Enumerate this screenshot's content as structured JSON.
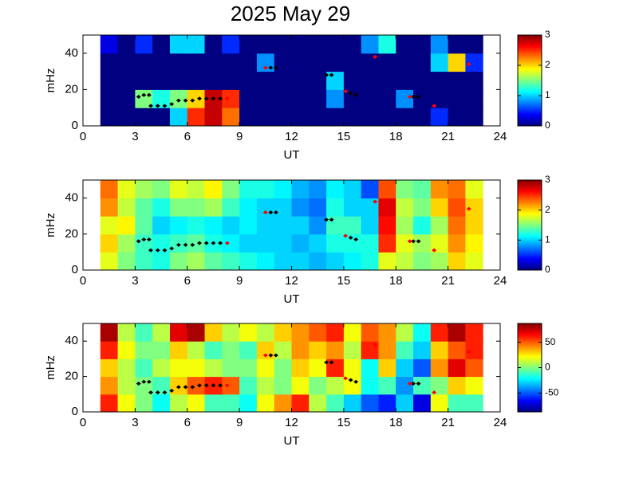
{
  "title": "2025 May 29",
  "chart_data": [
    {
      "type": "heatmap",
      "colormap": "jet",
      "xlabel": "UT",
      "ylabel": "mHz",
      "xlim": [
        0,
        24
      ],
      "ylim": [
        0,
        50
      ],
      "xticks": [
        0,
        3,
        6,
        9,
        12,
        15,
        18,
        21,
        24
      ],
      "yticks": [
        0,
        20,
        40
      ],
      "zlim": [
        0,
        3
      ],
      "zticks": [
        0,
        1,
        2,
        3
      ],
      "x": [
        1.5,
        2.5,
        3.5,
        4.5,
        5.5,
        6.5,
        7.5,
        8.5,
        9.5,
        10.5,
        11.5,
        12.5,
        13.5,
        14.5,
        15.5,
        16.5,
        17.5,
        18.5,
        19.5,
        20.5,
        21.5,
        22.5
      ],
      "y": [
        5,
        15,
        25,
        35,
        45
      ],
      "z": [
        [
          0,
          0,
          0,
          0,
          1,
          2.5,
          2.8,
          2.3,
          0,
          0,
          0,
          0,
          0,
          0,
          0,
          0,
          0,
          0,
          0,
          0.5,
          0,
          0
        ],
        [
          0,
          0,
          1.5,
          1.2,
          1.5,
          2,
          2.8,
          2.5,
          0,
          0,
          0,
          0,
          0,
          0.8,
          0,
          0,
          0,
          0.8,
          0,
          0,
          0,
          0
        ],
        [
          0,
          0,
          0,
          0,
          0,
          0,
          0,
          0,
          0,
          0,
          0,
          0,
          0,
          1,
          0,
          0,
          0,
          0,
          0,
          0,
          0,
          0
        ],
        [
          0,
          0,
          0,
          0,
          0,
          0,
          0,
          0,
          0,
          0.8,
          0,
          0,
          0,
          0,
          0,
          0,
          0,
          0,
          0,
          1,
          2,
          0.5
        ],
        [
          0.3,
          0,
          0.5,
          0,
          1,
          1,
          0,
          0.5,
          0,
          0,
          0,
          0,
          0,
          0,
          0,
          0.8,
          1.2,
          0,
          0,
          0.8,
          0,
          0
        ]
      ],
      "series": [
        {
          "color": "#000000",
          "x": [
            3.2,
            3.5,
            3.8,
            3.9,
            4.3,
            4.7,
            5.1,
            5.5,
            5.9,
            6.3,
            6.7,
            7.1,
            7.5,
            7.9,
            10.8,
            11.1,
            14.0,
            14.3,
            15.4,
            15.7,
            19.0,
            19.3
          ],
          "values": [
            16,
            17,
            17,
            11,
            11,
            11,
            12,
            14,
            14,
            14,
            15,
            15,
            15,
            15,
            32,
            32,
            28,
            28,
            18,
            17,
            16,
            16
          ]
        },
        {
          "color": "#ff0000",
          "x": [
            8.3,
            10.5,
            15.1,
            16.8,
            18.8,
            20.2,
            22.2
          ],
          "values": [
            15,
            32,
            19,
            38,
            16,
            11,
            34
          ]
        }
      ]
    },
    {
      "type": "heatmap",
      "colormap": "jet",
      "xlabel": "UT",
      "ylabel": "mHz",
      "xlim": [
        0,
        24
      ],
      "ylim": [
        0,
        50
      ],
      "xticks": [
        0,
        3,
        6,
        9,
        12,
        15,
        18,
        21,
        24
      ],
      "yticks": [
        0,
        20,
        40
      ],
      "zlim": [
        0,
        3
      ],
      "zticks": [
        0,
        1,
        2,
        3
      ],
      "x": [
        1.5,
        2.5,
        3.5,
        4.5,
        5.5,
        6.5,
        7.5,
        8.5,
        9.5,
        10.5,
        11.5,
        12.5,
        13.5,
        14.5,
        15.5,
        16.5,
        17.5,
        18.5,
        19.5,
        20.5,
        21.5,
        22.5
      ],
      "y": [
        5,
        15,
        25,
        35,
        45
      ],
      "z": [
        [
          1.8,
          1.5,
          1.3,
          1.2,
          1.5,
          1.6,
          1.4,
          1.3,
          1.2,
          1.1,
          1.0,
          1.0,
          0.9,
          1.0,
          1.1,
          1.2,
          1.8,
          1.7,
          1.5,
          1.6,
          2.0,
          1.8
        ],
        [
          2.0,
          1.6,
          1.3,
          1.2,
          1.3,
          1.4,
          1.2,
          1.1,
          1.0,
          1.0,
          1.0,
          0.9,
          1.0,
          1.2,
          1.2,
          1.2,
          2.5,
          1.8,
          1.6,
          1.8,
          2.2,
          1.9
        ],
        [
          1.8,
          1.9,
          1.4,
          1.0,
          1.1,
          1.2,
          1.1,
          1.0,
          1.1,
          1.0,
          1.0,
          1.0,
          0.8,
          1.3,
          1.3,
          1.0,
          2.6,
          1.6,
          1.2,
          1.6,
          2.3,
          2.0
        ],
        [
          2.2,
          1.7,
          1.4,
          1.2,
          1.5,
          1.5,
          1.6,
          1.3,
          1.1,
          1.0,
          1.0,
          0.8,
          0.7,
          1.2,
          1.0,
          1.0,
          2.7,
          1.7,
          1.5,
          2.0,
          2.4,
          2.0
        ],
        [
          2.3,
          1.8,
          1.6,
          1.5,
          1.8,
          1.7,
          1.9,
          1.5,
          1.2,
          1.2,
          1.1,
          0.9,
          0.8,
          1.1,
          1.0,
          0.6,
          2.4,
          1.5,
          1.4,
          2.2,
          2.3,
          1.8
        ]
      ],
      "series": [
        {
          "color": "#000000",
          "x": [
            3.2,
            3.5,
            3.8,
            3.9,
            4.3,
            4.7,
            5.1,
            5.5,
            5.9,
            6.3,
            6.7,
            7.1,
            7.5,
            7.9,
            10.8,
            11.1,
            14.0,
            14.3,
            15.4,
            15.7,
            19.0,
            19.3
          ],
          "values": [
            16,
            17,
            17,
            11,
            11,
            11,
            12,
            14,
            14,
            14,
            15,
            15,
            15,
            15,
            32,
            32,
            28,
            28,
            18,
            17,
            16,
            16
          ]
        },
        {
          "color": "#ff0000",
          "x": [
            8.3,
            10.5,
            15.1,
            16.8,
            18.8,
            20.2,
            22.2
          ],
          "values": [
            15,
            32,
            19,
            38,
            16,
            11,
            34
          ]
        }
      ]
    },
    {
      "type": "heatmap",
      "colormap": "jet",
      "xlabel": "UT",
      "ylabel": "mHz",
      "xlim": [
        0,
        24
      ],
      "ylim": [
        0,
        50
      ],
      "xticks": [
        0,
        3,
        6,
        9,
        12,
        15,
        18,
        21,
        24
      ],
      "yticks": [
        0,
        20,
        40
      ],
      "zlim": [
        -87,
        87
      ],
      "zticks": [
        -50,
        0,
        50
      ],
      "x": [
        1.5,
        2.5,
        3.5,
        4.5,
        5.5,
        6.5,
        7.5,
        8.5,
        9.5,
        10.5,
        11.5,
        12.5,
        13.5,
        14.5,
        15.5,
        16.5,
        17.5,
        18.5,
        19.5,
        20.5,
        21.5,
        22.5
      ],
      "y": [
        5,
        15,
        25,
        35,
        45
      ],
      "z": [
        [
          60,
          20,
          0,
          -20,
          10,
          20,
          -10,
          -10,
          -20,
          20,
          40,
          60,
          10,
          -10,
          -30,
          -50,
          -60,
          -30,
          -70,
          20,
          -10,
          -10
        ],
        [
          40,
          10,
          0,
          -10,
          30,
          50,
          60,
          50,
          -10,
          10,
          0,
          20,
          0,
          10,
          20,
          -20,
          -10,
          -40,
          -10,
          0,
          30,
          20
        ],
        [
          30,
          10,
          -10,
          10,
          20,
          20,
          10,
          0,
          0,
          20,
          0,
          30,
          20,
          60,
          20,
          -20,
          30,
          -30,
          -50,
          40,
          70,
          50
        ],
        [
          60,
          20,
          0,
          0,
          30,
          10,
          -10,
          0,
          -10,
          30,
          10,
          40,
          30,
          40,
          10,
          60,
          40,
          -10,
          -30,
          30,
          50,
          60
        ],
        [
          80,
          10,
          -10,
          10,
          70,
          80,
          30,
          10,
          20,
          10,
          30,
          40,
          50,
          60,
          20,
          50,
          40,
          10,
          -20,
          60,
          80,
          60
        ]
      ],
      "series": [
        {
          "color": "#000000",
          "x": [
            3.2,
            3.5,
            3.8,
            3.9,
            4.3,
            4.7,
            5.1,
            5.5,
            5.9,
            6.3,
            6.7,
            7.1,
            7.5,
            7.9,
            10.8,
            11.1,
            14.0,
            14.3,
            15.4,
            15.7,
            19.0,
            19.3
          ],
          "values": [
            16,
            17,
            17,
            11,
            11,
            11,
            12,
            14,
            14,
            14,
            15,
            15,
            15,
            15,
            32,
            32,
            28,
            28,
            18,
            17,
            16,
            16
          ]
        },
        {
          "color": "#ff0000",
          "x": [
            8.3,
            10.5,
            15.1,
            16.8,
            18.8,
            20.2,
            22.2
          ],
          "values": [
            15,
            32,
            19,
            38,
            16,
            11,
            34
          ]
        }
      ]
    }
  ]
}
